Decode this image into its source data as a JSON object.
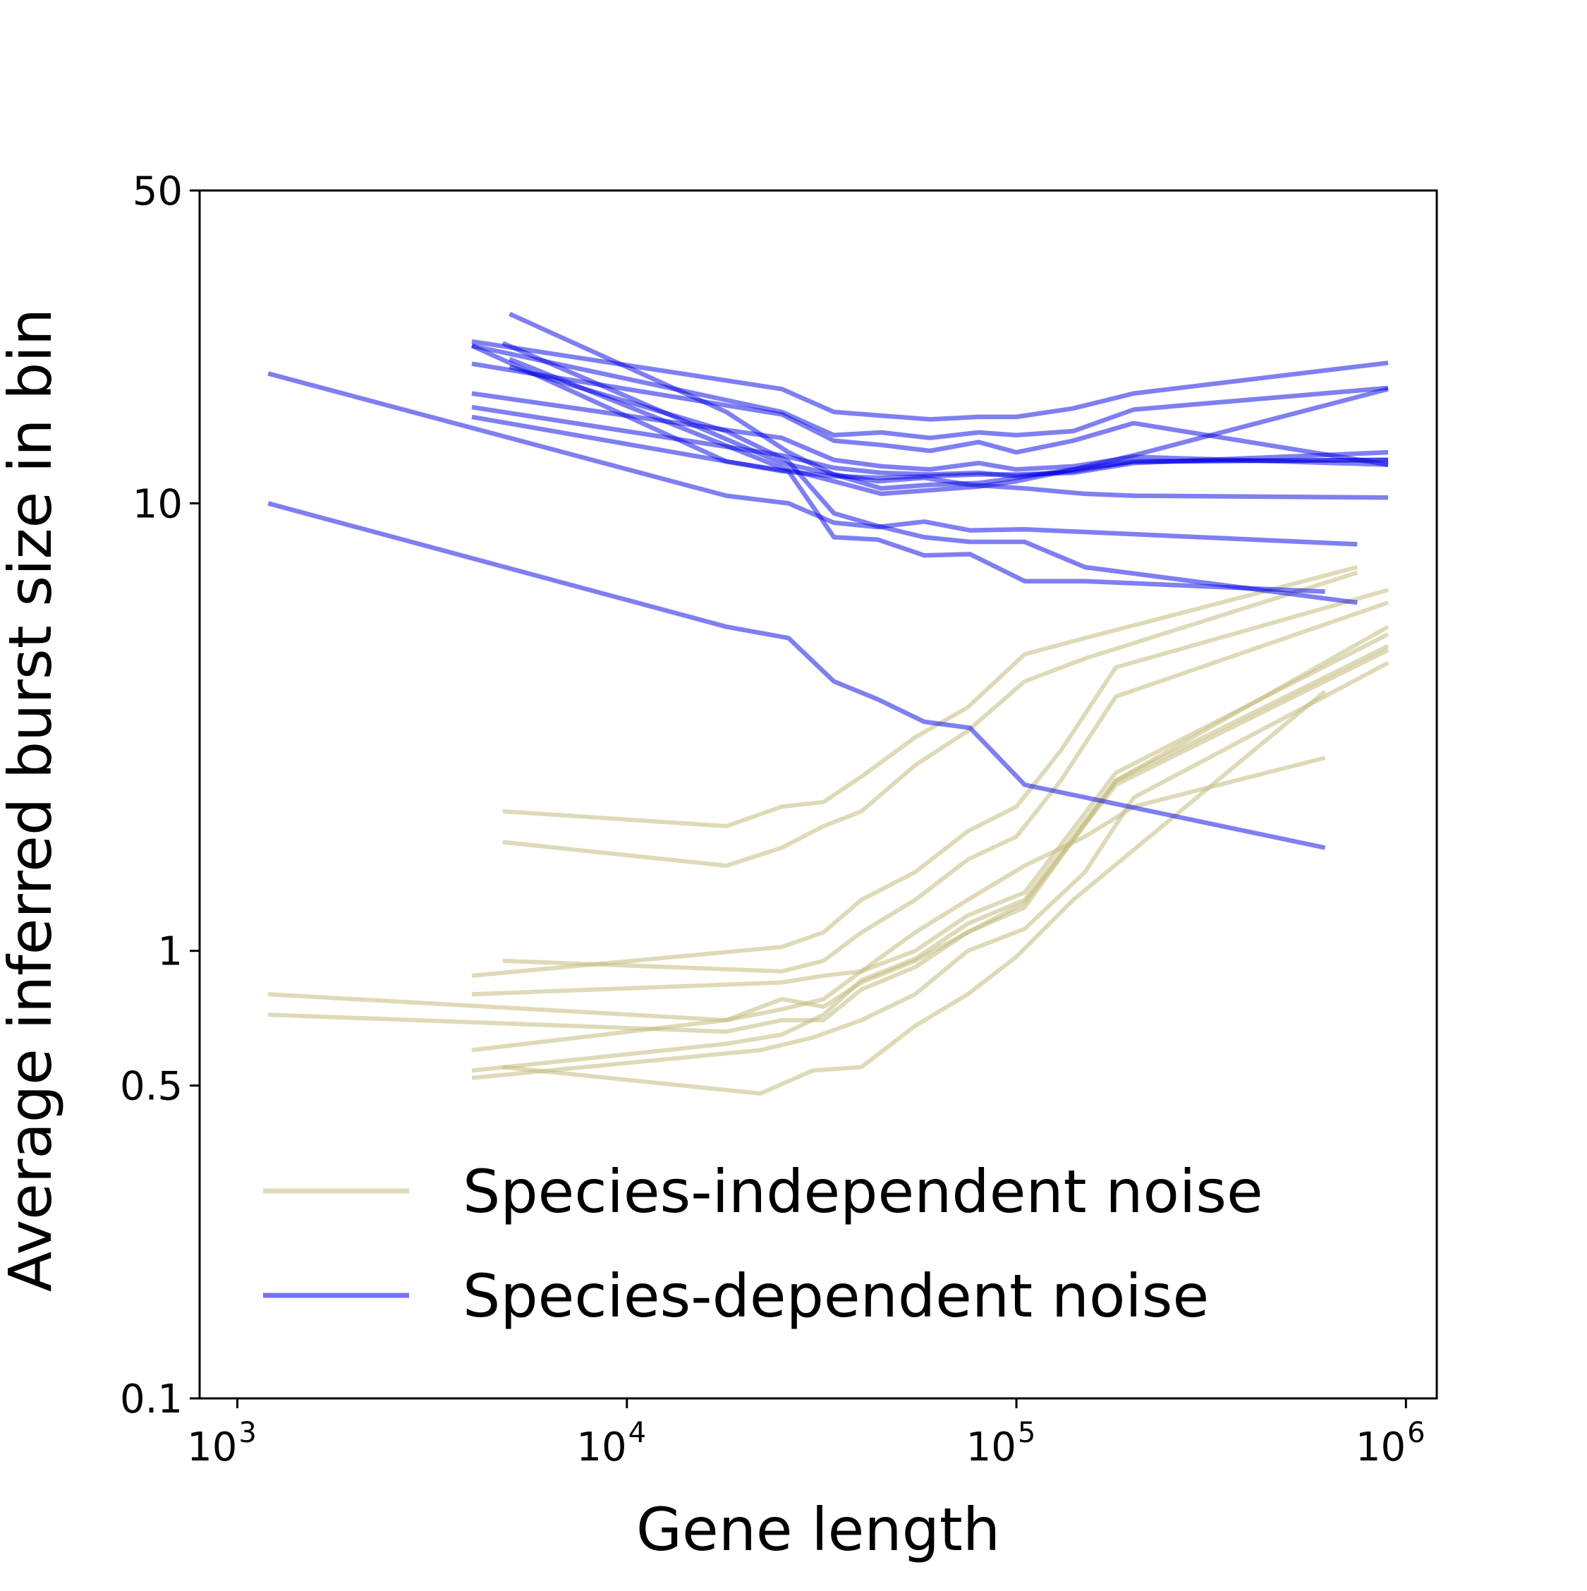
{
  "chart_data": {
    "type": "line",
    "xlabel": "Gene length",
    "ylabel": "Average inferred burst size in bin",
    "x_scale": "log",
    "y_scale": "log",
    "xlim": [
      800,
      1200000
    ],
    "ylim": [
      0.1,
      50
    ],
    "x_ticks": [
      {
        "value": 1000,
        "base": "10",
        "exp": "3"
      },
      {
        "value": 10000,
        "base": "10",
        "exp": "4"
      },
      {
        "value": 100000,
        "base": "10",
        "exp": "5"
      },
      {
        "value": 1000000,
        "base": "10",
        "exp": "6"
      }
    ],
    "y_ticks": [
      {
        "value": 0.1,
        "label": "0.1"
      },
      {
        "value": 0.5,
        "label": "0.5"
      },
      {
        "value": 1,
        "label": "1"
      },
      {
        "value": 10,
        "label": "10"
      },
      {
        "value": 50,
        "label": "50"
      }
    ],
    "legend": {
      "placement": "lower-right",
      "entries": [
        {
          "label": "Species-independent noise",
          "color": "#c2bc7d"
        },
        {
          "label": "Species-dependent noise",
          "color": "#0000e6"
        }
      ]
    },
    "group_colors": {
      "independent": "#c2bc7d",
      "dependent": "#0000e6"
    },
    "series": [
      {
        "group": "dependent",
        "x": [
          4000,
          25000,
          34000,
          45000,
          60000,
          80000,
          100000,
          140000,
          200000,
          900000
        ],
        "y": [
          23,
          18,
          16,
          15.7,
          15.4,
          15.6,
          15.6,
          16.3,
          17.6,
          20.6
        ]
      },
      {
        "group": "dependent",
        "x": [
          4000,
          25000,
          34000,
          45000,
          60000,
          80000,
          100000,
          140000,
          200000,
          900000
        ],
        "y": [
          22.5,
          16,
          14.2,
          14.4,
          14,
          14.4,
          14.2,
          14.5,
          16.2,
          18.1
        ]
      },
      {
        "group": "dependent",
        "x": [
          4000,
          25000,
          34000,
          45000,
          60000,
          80000,
          100000,
          140000,
          200000,
          900000
        ],
        "y": [
          20.5,
          15.8,
          13.8,
          13.5,
          13.1,
          13.7,
          13,
          13.8,
          15.1,
          12.2
        ]
      },
      {
        "group": "dependent",
        "x": [
          4000,
          25000,
          34000,
          45000,
          60000,
          80000,
          100000,
          140000,
          200000,
          900000
        ],
        "y": [
          17.6,
          14,
          12.5,
          12.1,
          11.9,
          12.3,
          11.9,
          12.1,
          12.7,
          12.2
        ]
      },
      {
        "group": "dependent",
        "x": [
          4000,
          25000,
          34000,
          45000,
          60000,
          80000,
          100000,
          140000,
          200000,
          900000
        ],
        "y": [
          16.4,
          12.8,
          12,
          11.7,
          11.6,
          11.7,
          11.5,
          11.8,
          12.4,
          12.5
        ]
      },
      {
        "group": "dependent",
        "x": [
          4000,
          25000,
          34000,
          45000,
          60000,
          80000,
          100000,
          140000,
          200000,
          900000
        ],
        "y": [
          15.6,
          11.8,
          11.5,
          11.4,
          11.5,
          11.6,
          11.6,
          11.7,
          12.3,
          13
        ]
      },
      {
        "group": "dependent",
        "x": [
          4800,
          25000,
          34000,
          45000,
          60000,
          80000,
          100000,
          140000,
          200000,
          900000
        ],
        "y": [
          22.8,
          12.3,
          11.6,
          10.8,
          11,
          11.1,
          11.4,
          11.9,
          12.4,
          12.5
        ]
      },
      {
        "group": "dependent",
        "x": [
          5000,
          25000,
          34000,
          45000,
          60000,
          80000,
          100000,
          140000,
          200000,
          900000
        ],
        "y": [
          21,
          12,
          11.2,
          10.5,
          10.7,
          10.9,
          11.2,
          11.9,
          12.8,
          18
        ]
      },
      {
        "group": "dependent",
        "x": [
          5000,
          18000,
          26000,
          34000,
          44000,
          58000,
          76000,
          105000,
          150000,
          200000,
          900000
        ],
        "y": [
          26.5,
          16,
          13,
          11.6,
          11.2,
          11.4,
          11,
          10.8,
          10.5,
          10.4,
          10.3
        ]
      },
      {
        "group": "dependent",
        "x": [
          1200,
          18000,
          26000,
          34000,
          44000,
          58000,
          76000,
          105000,
          750000
        ],
        "y": [
          19.5,
          10.4,
          10,
          9.05,
          8.85,
          9.1,
          8.7,
          8.75,
          8.1
        ]
      },
      {
        "group": "dependent",
        "x": [
          5000,
          18000,
          26000,
          34000,
          44000,
          58000,
          76000,
          105000,
          150000,
          750000
        ],
        "y": [
          20.2,
          14.5,
          12.4,
          9.5,
          8.9,
          8.4,
          8.2,
          8.2,
          7.2,
          6.0
        ]
      },
      {
        "group": "dependent",
        "x": [
          4000,
          18000,
          26000,
          34000,
          44000,
          58000,
          76000,
          105000,
          150000,
          620000
        ],
        "y": [
          22.5,
          12.4,
          11.8,
          8.4,
          8.3,
          7.65,
          7.7,
          6.7,
          6.7,
          6.35
        ]
      },
      {
        "group": "dependent",
        "x": [
          1200,
          18000,
          26000,
          34000,
          44000,
          58000,
          76000,
          105000,
          620000
        ],
        "y": [
          10,
          5.3,
          5.0,
          4.0,
          3.65,
          3.25,
          3.15,
          2.35,
          1.7
        ]
      },
      {
        "group": "independent",
        "x": [
          4800,
          18000,
          25000,
          32000,
          40000,
          55000,
          75000,
          105000,
          150000,
          750000
        ],
        "y": [
          2.05,
          1.9,
          2.1,
          2.15,
          2.45,
          3.0,
          3.5,
          4.6,
          5.0,
          7.2
        ]
      },
      {
        "group": "independent",
        "x": [
          4800,
          18000,
          25000,
          32000,
          40000,
          55000,
          75000,
          105000,
          150000,
          750000
        ],
        "y": [
          1.75,
          1.55,
          1.7,
          1.9,
          2.05,
          2.6,
          3.1,
          4.0,
          4.5,
          7.0
        ]
      },
      {
        "group": "independent",
        "x": [
          4000,
          25000,
          32000,
          40000,
          55000,
          75000,
          100000,
          130000,
          180000,
          900000
        ],
        "y": [
          0.88,
          1.02,
          1.1,
          1.3,
          1.5,
          1.85,
          2.1,
          2.8,
          4.3,
          6.4
        ]
      },
      {
        "group": "independent",
        "x": [
          4800,
          25000,
          32000,
          40000,
          55000,
          75000,
          100000,
          130000,
          180000,
          900000
        ],
        "y": [
          0.95,
          0.9,
          0.95,
          1.1,
          1.3,
          1.6,
          1.8,
          2.4,
          3.7,
          6.0
        ]
      },
      {
        "group": "independent",
        "x": [
          1200,
          18000,
          25000,
          32000,
          40000,
          55000,
          75000,
          105000,
          180000,
          900000
        ],
        "y": [
          0.8,
          0.7,
          0.78,
          0.75,
          0.85,
          0.95,
          1.1,
          1.25,
          2.4,
          5.3
        ]
      },
      {
        "group": "independent",
        "x": [
          4000,
          18000,
          25000,
          32000,
          40000,
          55000,
          75000,
          105000,
          180000,
          900000
        ],
        "y": [
          0.6,
          0.7,
          0.74,
          0.78,
          0.9,
          1.0,
          1.2,
          1.35,
          2.5,
          5.1
        ]
      },
      {
        "group": "independent",
        "x": [
          4000,
          18000,
          25000,
          32000,
          40000,
          55000,
          75000,
          105000,
          180000,
          900000
        ],
        "y": [
          0.54,
          0.62,
          0.65,
          0.72,
          0.86,
          0.96,
          1.15,
          1.3,
          2.4,
          4.8
        ]
      },
      {
        "group": "independent",
        "x": [
          1200,
          18000,
          25000,
          32000,
          40000,
          55000,
          75000,
          105000,
          180000,
          900000
        ],
        "y": [
          0.72,
          0.66,
          0.7,
          0.7,
          0.82,
          0.92,
          1.1,
          1.28,
          2.35,
          4.7
        ]
      },
      {
        "group": "independent",
        "x": [
          4000,
          22000,
          30000,
          40000,
          55000,
          75000,
          105000,
          150000,
          200000,
          900000
        ],
        "y": [
          0.52,
          0.6,
          0.64,
          0.7,
          0.8,
          1.0,
          1.12,
          1.5,
          2.2,
          4.4
        ]
      },
      {
        "group": "independent",
        "x": [
          4800,
          22000,
          30000,
          40000,
          55000,
          75000,
          100000,
          140000,
          620000
        ],
        "y": [
          0.55,
          0.48,
          0.54,
          0.55,
          0.68,
          0.8,
          0.97,
          1.3,
          3.8
        ]
      },
      {
        "group": "independent",
        "x": [
          4000,
          25000,
          32000,
          40000,
          55000,
          75000,
          105000,
          150000,
          200000,
          620000
        ],
        "y": [
          0.8,
          0.85,
          0.88,
          0.9,
          1.1,
          1.3,
          1.55,
          1.8,
          2.1,
          2.7
        ]
      }
    ]
  }
}
